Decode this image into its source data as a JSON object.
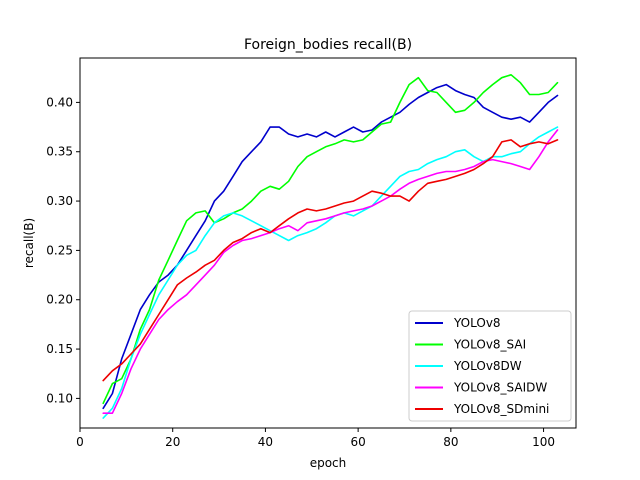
{
  "chart_data": {
    "type": "line",
    "title": "Foreign_bodies recall(B)",
    "xlabel": "epoch",
    "ylabel": "recall(B)",
    "xlim": [
      0,
      107
    ],
    "ylim": [
      0.07,
      0.445
    ],
    "xticks": [
      0,
      20,
      40,
      60,
      80,
      100
    ],
    "yticks": [
      0.1,
      0.15,
      0.2,
      0.25,
      0.3,
      0.35,
      0.4
    ],
    "legend_position": "lower-right",
    "grid": false,
    "series": [
      {
        "name": "YOLOv8",
        "color": "#0000cc",
        "points": [
          [
            5,
            0.09
          ],
          [
            7,
            0.105
          ],
          [
            9,
            0.14
          ],
          [
            11,
            0.165
          ],
          [
            13,
            0.19
          ],
          [
            15,
            0.205
          ],
          [
            17,
            0.218
          ],
          [
            19,
            0.225
          ],
          [
            21,
            0.235
          ],
          [
            23,
            0.25
          ],
          [
            25,
            0.265
          ],
          [
            27,
            0.28
          ],
          [
            29,
            0.3
          ],
          [
            31,
            0.31
          ],
          [
            33,
            0.325
          ],
          [
            35,
            0.34
          ],
          [
            37,
            0.35
          ],
          [
            39,
            0.36
          ],
          [
            41,
            0.375
          ],
          [
            43,
            0.375
          ],
          [
            45,
            0.368
          ],
          [
            47,
            0.365
          ],
          [
            49,
            0.368
          ],
          [
            51,
            0.365
          ],
          [
            53,
            0.37
          ],
          [
            55,
            0.365
          ],
          [
            57,
            0.37
          ],
          [
            59,
            0.375
          ],
          [
            61,
            0.37
          ],
          [
            63,
            0.372
          ],
          [
            65,
            0.38
          ],
          [
            67,
            0.385
          ],
          [
            69,
            0.39
          ],
          [
            71,
            0.398
          ],
          [
            73,
            0.405
          ],
          [
            75,
            0.41
          ],
          [
            77,
            0.415
          ],
          [
            79,
            0.418
          ],
          [
            81,
            0.412
          ],
          [
            83,
            0.408
          ],
          [
            85,
            0.405
          ],
          [
            87,
            0.395
          ],
          [
            89,
            0.39
          ],
          [
            91,
            0.385
          ],
          [
            93,
            0.383
          ],
          [
            95,
            0.385
          ],
          [
            97,
            0.38
          ],
          [
            99,
            0.39
          ],
          [
            101,
            0.4
          ],
          [
            103,
            0.407
          ]
        ]
      },
      {
        "name": "YOLOv8_SAI",
        "color": "#00ff00",
        "points": [
          [
            5,
            0.095
          ],
          [
            7,
            0.115
          ],
          [
            9,
            0.12
          ],
          [
            11,
            0.14
          ],
          [
            13,
            0.17
          ],
          [
            15,
            0.19
          ],
          [
            17,
            0.22
          ],
          [
            19,
            0.24
          ],
          [
            21,
            0.26
          ],
          [
            23,
            0.28
          ],
          [
            25,
            0.288
          ],
          [
            27,
            0.29
          ],
          [
            29,
            0.278
          ],
          [
            31,
            0.282
          ],
          [
            33,
            0.288
          ],
          [
            35,
            0.292
          ],
          [
            37,
            0.3
          ],
          [
            39,
            0.31
          ],
          [
            41,
            0.315
          ],
          [
            43,
            0.312
          ],
          [
            45,
            0.32
          ],
          [
            47,
            0.335
          ],
          [
            49,
            0.345
          ],
          [
            51,
            0.35
          ],
          [
            53,
            0.355
          ],
          [
            55,
            0.358
          ],
          [
            57,
            0.362
          ],
          [
            59,
            0.36
          ],
          [
            61,
            0.362
          ],
          [
            63,
            0.37
          ],
          [
            65,
            0.378
          ],
          [
            67,
            0.38
          ],
          [
            69,
            0.4
          ],
          [
            71,
            0.418
          ],
          [
            73,
            0.425
          ],
          [
            75,
            0.412
          ],
          [
            77,
            0.41
          ],
          [
            79,
            0.4
          ],
          [
            81,
            0.39
          ],
          [
            83,
            0.392
          ],
          [
            85,
            0.4
          ],
          [
            87,
            0.41
          ],
          [
            89,
            0.418
          ],
          [
            91,
            0.425
          ],
          [
            93,
            0.428
          ],
          [
            95,
            0.42
          ],
          [
            97,
            0.408
          ],
          [
            99,
            0.408
          ],
          [
            101,
            0.41
          ],
          [
            103,
            0.42
          ]
        ]
      },
      {
        "name": "YOLOv8DW",
        "color": "#00ffff",
        "points": [
          [
            5,
            0.08
          ],
          [
            7,
            0.09
          ],
          [
            9,
            0.11
          ],
          [
            11,
            0.14
          ],
          [
            13,
            0.165
          ],
          [
            15,
            0.185
          ],
          [
            17,
            0.205
          ],
          [
            19,
            0.22
          ],
          [
            21,
            0.235
          ],
          [
            23,
            0.245
          ],
          [
            25,
            0.25
          ],
          [
            27,
            0.265
          ],
          [
            29,
            0.278
          ],
          [
            31,
            0.285
          ],
          [
            33,
            0.288
          ],
          [
            35,
            0.285
          ],
          [
            37,
            0.28
          ],
          [
            39,
            0.275
          ],
          [
            41,
            0.27
          ],
          [
            43,
            0.265
          ],
          [
            45,
            0.26
          ],
          [
            47,
            0.265
          ],
          [
            49,
            0.268
          ],
          [
            51,
            0.272
          ],
          [
            53,
            0.278
          ],
          [
            55,
            0.285
          ],
          [
            57,
            0.288
          ],
          [
            59,
            0.285
          ],
          [
            61,
            0.29
          ],
          [
            63,
            0.295
          ],
          [
            65,
            0.305
          ],
          [
            67,
            0.315
          ],
          [
            69,
            0.325
          ],
          [
            71,
            0.33
          ],
          [
            73,
            0.332
          ],
          [
            75,
            0.338
          ],
          [
            77,
            0.342
          ],
          [
            79,
            0.345
          ],
          [
            81,
            0.35
          ],
          [
            83,
            0.352
          ],
          [
            85,
            0.345
          ],
          [
            87,
            0.34
          ],
          [
            89,
            0.345
          ],
          [
            91,
            0.345
          ],
          [
            93,
            0.348
          ],
          [
            95,
            0.35
          ],
          [
            97,
            0.358
          ],
          [
            99,
            0.365
          ],
          [
            101,
            0.37
          ],
          [
            103,
            0.375
          ]
        ]
      },
      {
        "name": "YOLOv8_SAIDW",
        "color": "#ff00ff",
        "points": [
          [
            5,
            0.085
          ],
          [
            7,
            0.085
          ],
          [
            9,
            0.105
          ],
          [
            11,
            0.13
          ],
          [
            13,
            0.15
          ],
          [
            15,
            0.165
          ],
          [
            17,
            0.18
          ],
          [
            19,
            0.19
          ],
          [
            21,
            0.198
          ],
          [
            23,
            0.205
          ],
          [
            25,
            0.215
          ],
          [
            27,
            0.225
          ],
          [
            29,
            0.235
          ],
          [
            31,
            0.248
          ],
          [
            33,
            0.255
          ],
          [
            35,
            0.26
          ],
          [
            37,
            0.262
          ],
          [
            39,
            0.265
          ],
          [
            41,
            0.268
          ],
          [
            43,
            0.272
          ],
          [
            45,
            0.275
          ],
          [
            47,
            0.27
          ],
          [
            49,
            0.278
          ],
          [
            51,
            0.28
          ],
          [
            53,
            0.282
          ],
          [
            55,
            0.285
          ],
          [
            57,
            0.288
          ],
          [
            59,
            0.29
          ],
          [
            61,
            0.292
          ],
          [
            63,
            0.295
          ],
          [
            65,
            0.3
          ],
          [
            67,
            0.305
          ],
          [
            69,
            0.312
          ],
          [
            71,
            0.318
          ],
          [
            73,
            0.322
          ],
          [
            75,
            0.325
          ],
          [
            77,
            0.328
          ],
          [
            79,
            0.33
          ],
          [
            81,
            0.33
          ],
          [
            83,
            0.332
          ],
          [
            85,
            0.335
          ],
          [
            87,
            0.34
          ],
          [
            89,
            0.342
          ],
          [
            91,
            0.34
          ],
          [
            93,
            0.338
          ],
          [
            95,
            0.335
          ],
          [
            97,
            0.332
          ],
          [
            99,
            0.345
          ],
          [
            101,
            0.36
          ],
          [
            103,
            0.372
          ]
        ]
      },
      {
        "name": "YOLOv8_SDmini",
        "color": "#ee0000",
        "points": [
          [
            5,
            0.118
          ],
          [
            7,
            0.128
          ],
          [
            9,
            0.135
          ],
          [
            11,
            0.145
          ],
          [
            13,
            0.155
          ],
          [
            15,
            0.17
          ],
          [
            17,
            0.185
          ],
          [
            19,
            0.2
          ],
          [
            21,
            0.215
          ],
          [
            23,
            0.222
          ],
          [
            25,
            0.228
          ],
          [
            27,
            0.235
          ],
          [
            29,
            0.24
          ],
          [
            31,
            0.25
          ],
          [
            33,
            0.258
          ],
          [
            35,
            0.262
          ],
          [
            37,
            0.268
          ],
          [
            39,
            0.272
          ],
          [
            41,
            0.268
          ],
          [
            43,
            0.275
          ],
          [
            45,
            0.282
          ],
          [
            47,
            0.288
          ],
          [
            49,
            0.292
          ],
          [
            51,
            0.29
          ],
          [
            53,
            0.292
          ],
          [
            55,
            0.295
          ],
          [
            57,
            0.298
          ],
          [
            59,
            0.3
          ],
          [
            61,
            0.305
          ],
          [
            63,
            0.31
          ],
          [
            65,
            0.308
          ],
          [
            67,
            0.305
          ],
          [
            69,
            0.305
          ],
          [
            71,
            0.3
          ],
          [
            73,
            0.31
          ],
          [
            75,
            0.318
          ],
          [
            77,
            0.32
          ],
          [
            79,
            0.322
          ],
          [
            81,
            0.325
          ],
          [
            83,
            0.328
          ],
          [
            85,
            0.332
          ],
          [
            87,
            0.338
          ],
          [
            89,
            0.345
          ],
          [
            91,
            0.36
          ],
          [
            93,
            0.362
          ],
          [
            95,
            0.355
          ],
          [
            97,
            0.358
          ],
          [
            99,
            0.36
          ],
          [
            101,
            0.358
          ],
          [
            103,
            0.362
          ]
        ]
      }
    ]
  }
}
